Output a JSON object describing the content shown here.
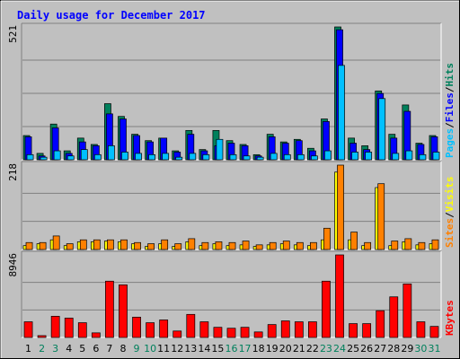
{
  "title": "Daily usage for December 2017",
  "colors": {
    "hits": "#00805c",
    "files": "#0000ff",
    "pages": "#00c0ff",
    "visits": "#ffff00",
    "sites": "#ff8000",
    "kbytes": "#ff0000",
    "title": "#0000ff",
    "weekend_day": "#00805c",
    "weekday_day": "#000000"
  },
  "chart_data": [
    {
      "type": "bar",
      "panel": "top",
      "y_max_label": "521",
      "y_max": 521,
      "grid": true,
      "legend_placement": "right",
      "legend": [
        {
          "label": "Pages",
          "color": "#00c0ff"
        },
        {
          "label": "Files",
          "color": "#0000ff"
        },
        {
          "label": "Hits",
          "color": "#00805c"
        }
      ],
      "categories": [
        "1",
        "2",
        "3",
        "4",
        "5",
        "6",
        "7",
        "8",
        "9",
        "10",
        "11",
        "12",
        "13",
        "14",
        "15",
        "16",
        "17",
        "18",
        "19",
        "20",
        "21",
        "22",
        "23",
        "24",
        "25",
        "26",
        "27",
        "28",
        "29",
        "30",
        "31"
      ],
      "series": [
        {
          "name": "Hits",
          "values": [
            95,
            25,
            140,
            35,
            85,
            60,
            220,
            170,
            100,
            75,
            85,
            35,
            115,
            40,
            115,
            75,
            60,
            20,
            100,
            70,
            80,
            45,
            160,
            521,
            85,
            55,
            270,
            100,
            215,
            65,
            95
          ]
        },
        {
          "name": "Files",
          "values": [
            90,
            15,
            125,
            25,
            70,
            55,
            180,
            160,
            95,
            70,
            85,
            30,
            100,
            35,
            55,
            65,
            55,
            15,
            90,
            65,
            75,
            35,
            150,
            510,
            65,
            40,
            260,
            85,
            190,
            60,
            90
          ]
        },
        {
          "name": "Pages",
          "values": [
            20,
            10,
            35,
            15,
            40,
            20,
            55,
            30,
            25,
            20,
            25,
            10,
            25,
            20,
            80,
            20,
            15,
            10,
            25,
            20,
            20,
            15,
            35,
            370,
            30,
            30,
            240,
            25,
            35,
            20,
            30
          ]
        }
      ]
    },
    {
      "type": "bar",
      "panel": "middle",
      "y_max_label": "218",
      "y_max": 218,
      "grid": true,
      "legend_placement": "right",
      "legend": [
        {
          "label": "Sites",
          "color": "#ff8000"
        },
        {
          "label": "Visits",
          "color": "#ffff00"
        }
      ],
      "categories": [
        "1",
        "2",
        "3",
        "4",
        "5",
        "6",
        "7",
        "8",
        "9",
        "10",
        "11",
        "12",
        "13",
        "14",
        "15",
        "16",
        "17",
        "18",
        "19",
        "20",
        "21",
        "22",
        "23",
        "24",
        "25",
        "26",
        "27",
        "28",
        "29",
        "30",
        "31"
      ],
      "series": [
        {
          "name": "Visits",
          "values": [
            10,
            15,
            25,
            10,
            20,
            20,
            22,
            20,
            15,
            8,
            15,
            8,
            20,
            10,
            15,
            10,
            12,
            8,
            12,
            15,
            12,
            10,
            25,
            200,
            25,
            10,
            160,
            10,
            20,
            12,
            15
          ]
        },
        {
          "name": "Sites",
          "values": [
            18,
            18,
            35,
            15,
            25,
            25,
            25,
            25,
            18,
            15,
            25,
            15,
            28,
            18,
            20,
            18,
            22,
            12,
            18,
            22,
            18,
            18,
            55,
            218,
            45,
            18,
            170,
            22,
            28,
            18,
            25
          ]
        }
      ]
    },
    {
      "type": "bar",
      "panel": "bottom",
      "y_max_label": "8946",
      "y_max": 8946,
      "grid": true,
      "legend_placement": "right",
      "legend": [
        {
          "label": "KBytes",
          "color": "#ff0000"
        }
      ],
      "categories": [
        "1",
        "2",
        "3",
        "4",
        "5",
        "6",
        "7",
        "8",
        "9",
        "10",
        "11",
        "12",
        "13",
        "14",
        "15",
        "16",
        "17",
        "18",
        "19",
        "20",
        "21",
        "22",
        "23",
        "24",
        "25",
        "26",
        "27",
        "28",
        "29",
        "30",
        "31"
      ],
      "series": [
        {
          "name": "KBytes",
          "values": [
            1700,
            200,
            2300,
            2100,
            1600,
            500,
            6100,
            5700,
            2200,
            1600,
            1900,
            700,
            2500,
            1700,
            1100,
            1000,
            1100,
            600,
            1400,
            1800,
            1700,
            1700,
            6100,
            8946,
            1500,
            1500,
            2900,
            4400,
            5800,
            1700,
            1200
          ]
        }
      ]
    }
  ],
  "x_axis": {
    "labels": [
      "1",
      "2",
      "3",
      "4",
      "5",
      "6",
      "7",
      "8",
      "9",
      "10",
      "11",
      "12",
      "13",
      "14",
      "15",
      "16",
      "17",
      "18",
      "19",
      "20",
      "21",
      "22",
      "23",
      "24",
      "25",
      "26",
      "27",
      "28",
      "29",
      "30",
      "31"
    ],
    "weekend": [
      false,
      true,
      true,
      false,
      false,
      false,
      false,
      false,
      true,
      true,
      false,
      false,
      false,
      false,
      false,
      true,
      true,
      false,
      false,
      false,
      false,
      false,
      true,
      true,
      false,
      false,
      false,
      false,
      false,
      true,
      true
    ]
  }
}
